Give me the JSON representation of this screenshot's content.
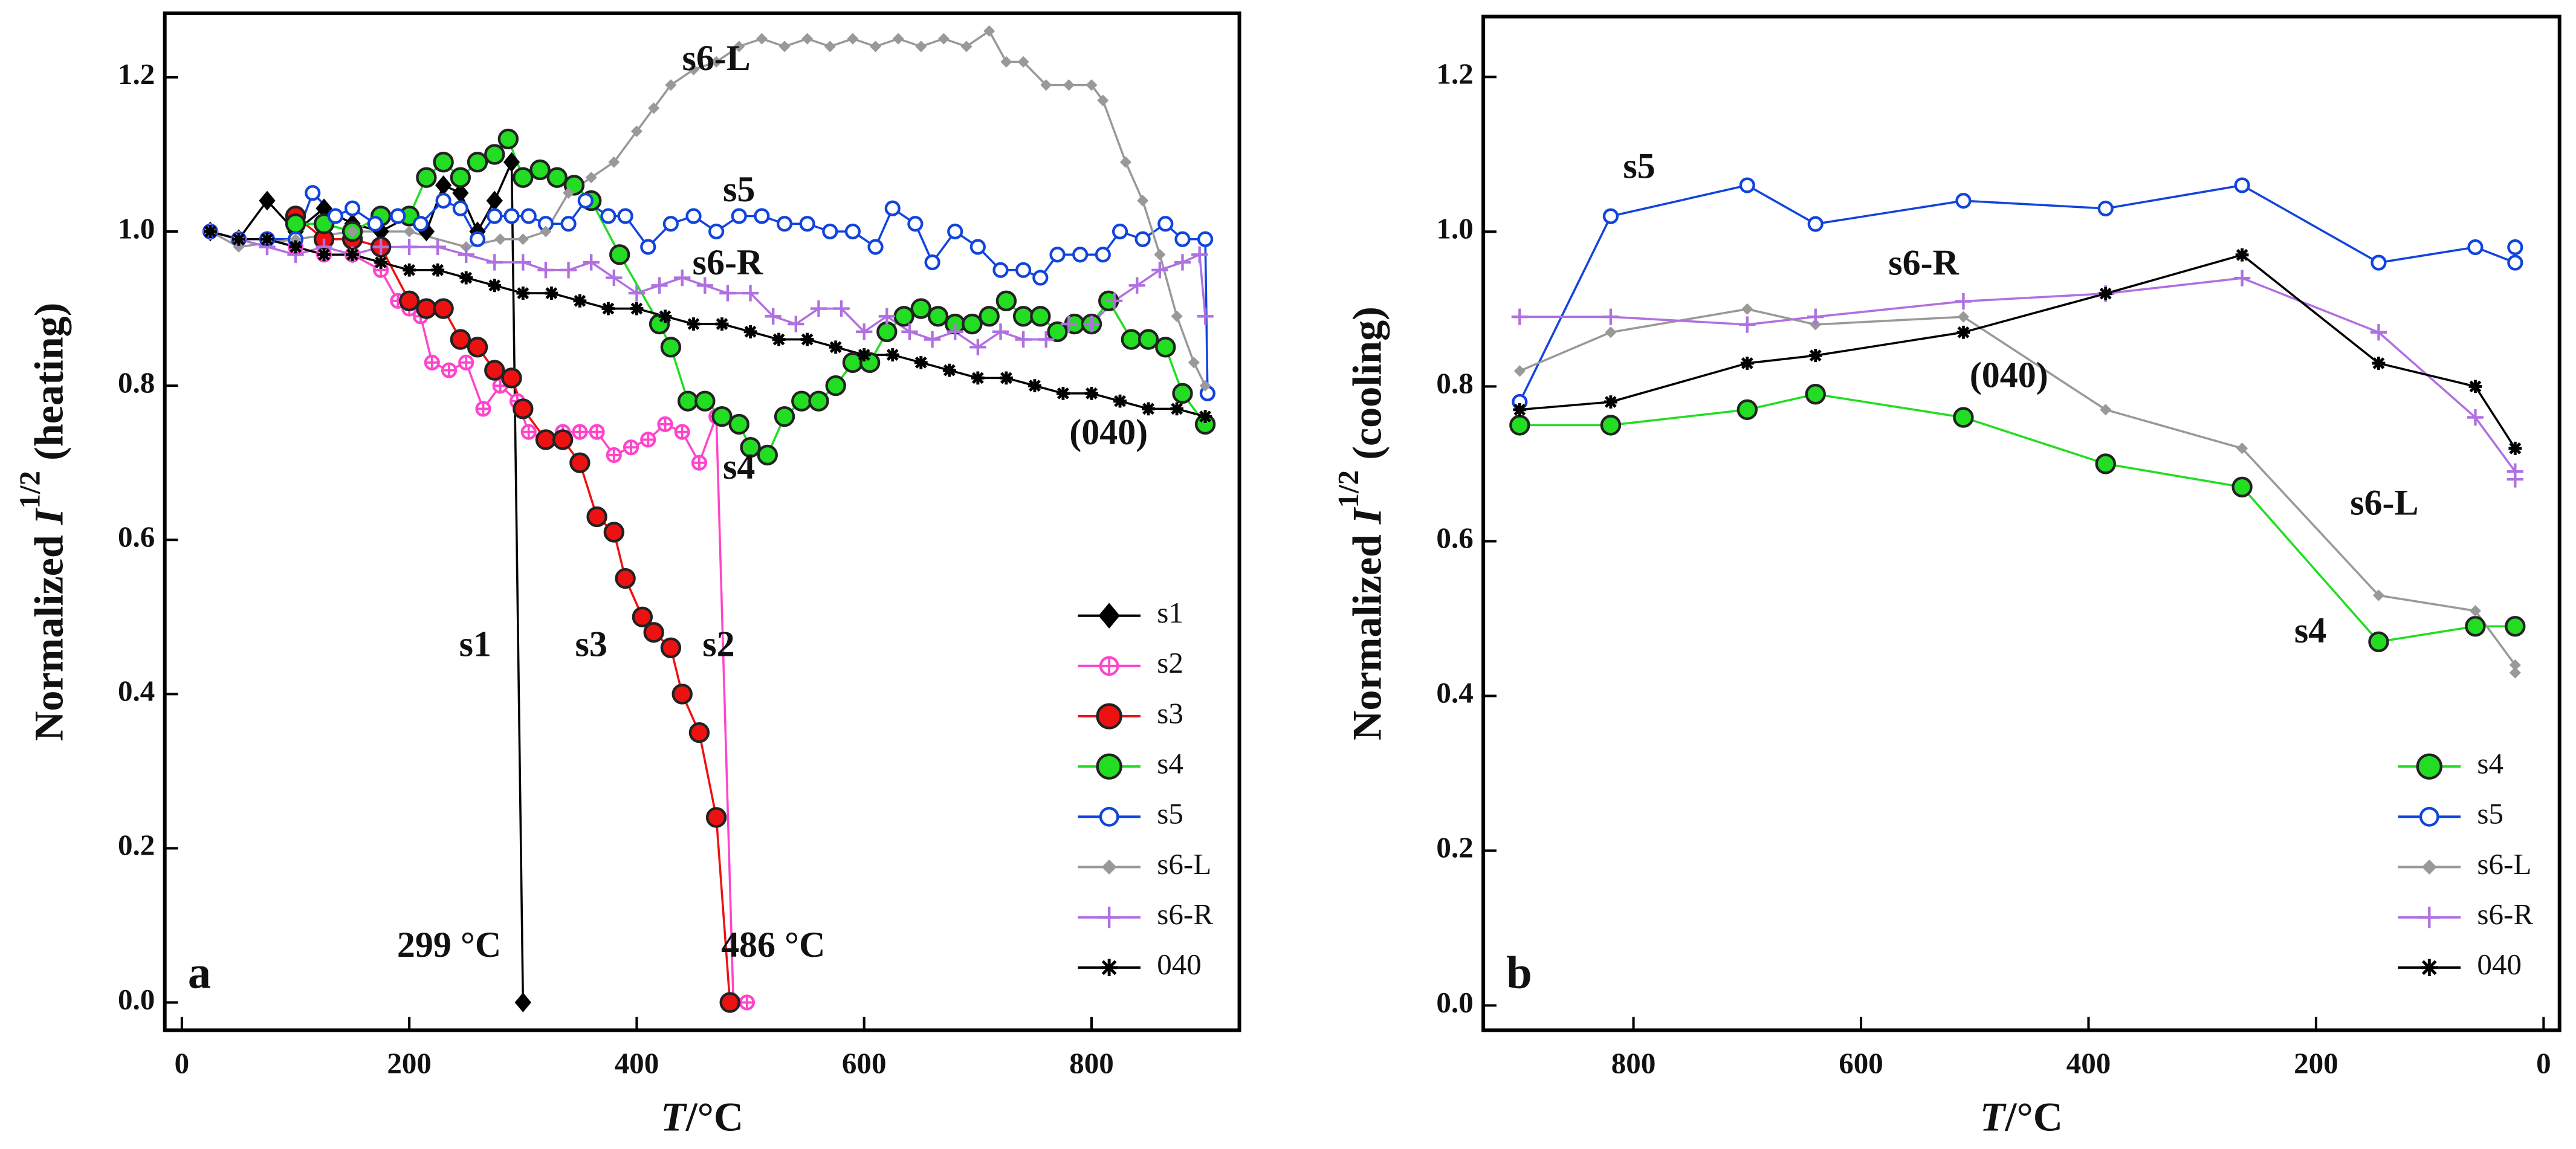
{
  "chart_data": [
    {
      "type": "line",
      "panel": "a",
      "xlabel": {
        "var": "T",
        "post": "/°C"
      },
      "ylabel": {
        "pre": "Normalized ",
        "var": "I",
        "sup": "1/2",
        "post": " (heating)"
      },
      "xlim": [
        -15,
        930
      ],
      "xticks": [
        0,
        200,
        400,
        600,
        800
      ],
      "ylim": [
        -0.036,
        1.283
      ],
      "yticks": [
        {
          "value": 0,
          "label": "0.0"
        },
        0.2,
        0.4,
        0.6,
        0.8,
        {
          "value": 1,
          "label": "1.0"
        },
        1.2
      ],
      "legend": "lower right",
      "annotations": [
        "s6-L",
        "s5",
        "s6-R",
        "s4",
        "(040)",
        "s1",
        "s3",
        "s2",
        "299 °C",
        "486 °C"
      ],
      "series": [
        {
          "name": "s1",
          "color": "#000000",
          "marker": "diamond",
          "x": [
            25,
            50,
            75,
            100,
            125,
            150,
            175,
            200,
            215,
            230,
            245,
            260,
            275,
            290,
            300
          ],
          "values": [
            1.0,
            0.99,
            1.04,
            1.0,
            1.03,
            1.01,
            1.0,
            1.02,
            1.0,
            1.06,
            1.05,
            1.0,
            1.04,
            1.09,
            0.0
          ]
        },
        {
          "name": "s2",
          "color": "#ff44cc",
          "marker": "circle-cross",
          "x": [
            25,
            50,
            75,
            100,
            125,
            150,
            175,
            190,
            200,
            210,
            220,
            235,
            250,
            265,
            280,
            295,
            305,
            320,
            335,
            350,
            365,
            380,
            395,
            410,
            425,
            440,
            455,
            470,
            485,
            497
          ],
          "values": [
            1.0,
            0.99,
            0.99,
            0.98,
            0.97,
            0.97,
            0.95,
            0.91,
            0.9,
            0.89,
            0.83,
            0.82,
            0.83,
            0.77,
            0.8,
            0.78,
            0.74,
            0.73,
            0.74,
            0.74,
            0.74,
            0.71,
            0.72,
            0.73,
            0.75,
            0.74,
            0.7,
            0.76,
            0.0,
            0.0
          ]
        },
        {
          "name": "s3",
          "color": "#ee1111",
          "marker": "circle",
          "x": [
            100,
            125,
            150,
            175,
            200,
            215,
            230,
            245,
            260,
            275,
            290,
            300,
            320,
            335,
            350,
            365,
            380,
            390,
            405,
            415,
            430,
            440,
            455,
            470,
            482
          ],
          "values": [
            1.02,
            0.99,
            0.99,
            0.98,
            0.91,
            0.9,
            0.9,
            0.86,
            0.85,
            0.82,
            0.81,
            0.77,
            0.73,
            0.73,
            0.7,
            0.63,
            0.61,
            0.55,
            0.5,
            0.48,
            0.46,
            0.4,
            0.35,
            0.24,
            0.0
          ]
        },
        {
          "name": "s4",
          "color": "#22dd22",
          "marker": "circle",
          "x": [
            100,
            125,
            150,
            175,
            200,
            215,
            230,
            245,
            260,
            275,
            287,
            300,
            315,
            330,
            345,
            360,
            385,
            420,
            430,
            445,
            460,
            475,
            490,
            500,
            515,
            530,
            545,
            560,
            575,
            590,
            605,
            620,
            635,
            650,
            665,
            680,
            695,
            710,
            725,
            740,
            755,
            770,
            785,
            800,
            815,
            835,
            850,
            865,
            880,
            900
          ],
          "values": [
            1.01,
            1.01,
            1.0,
            1.02,
            1.02,
            1.07,
            1.09,
            1.07,
            1.09,
            1.1,
            1.12,
            1.07,
            1.08,
            1.07,
            1.06,
            1.04,
            0.97,
            0.88,
            0.85,
            0.78,
            0.78,
            0.76,
            0.75,
            0.72,
            0.71,
            0.76,
            0.78,
            0.78,
            0.8,
            0.83,
            0.83,
            0.87,
            0.89,
            0.9,
            0.89,
            0.88,
            0.88,
            0.89,
            0.91,
            0.89,
            0.89,
            0.87,
            0.88,
            0.88,
            0.91,
            0.86,
            0.86,
            0.85,
            0.79,
            0.75
          ]
        },
        {
          "name": "s5",
          "color": "#1144dd",
          "marker": "circle-open",
          "x": [
            25,
            50,
            75,
            100,
            115,
            135,
            150,
            170,
            190,
            210,
            230,
            245,
            260,
            275,
            290,
            305,
            320,
            340,
            355,
            375,
            390,
            410,
            430,
            450,
            470,
            490,
            510,
            530,
            550,
            570,
            590,
            610,
            625,
            645,
            660,
            680,
            700,
            720,
            740,
            755,
            770,
            790,
            810,
            825,
            845,
            865,
            880,
            900,
            902
          ],
          "values": [
            1.0,
            0.99,
            0.99,
            0.99,
            1.05,
            1.02,
            1.03,
            1.01,
            1.02,
            1.01,
            1.04,
            1.03,
            0.99,
            1.02,
            1.02,
            1.02,
            1.01,
            1.01,
            1.04,
            1.02,
            1.02,
            0.98,
            1.01,
            1.02,
            1.0,
            1.02,
            1.02,
            1.01,
            1.01,
            1.0,
            1.0,
            0.98,
            1.03,
            1.01,
            0.96,
            1.0,
            0.98,
            0.95,
            0.95,
            0.94,
            0.97,
            0.97,
            0.97,
            1.0,
            0.99,
            1.01,
            0.99,
            0.99,
            0.79
          ]
        },
        {
          "name": "s6-L",
          "color": "#999999",
          "marker": "diamond-small",
          "x": [
            25,
            50,
            100,
            150,
            200,
            250,
            280,
            300,
            320,
            340,
            360,
            380,
            400,
            415,
            430,
            450,
            470,
            490,
            510,
            530,
            550,
            570,
            590,
            610,
            630,
            650,
            670,
            690,
            710,
            725,
            740,
            760,
            780,
            800,
            810,
            830,
            845,
            860,
            875,
            890,
            900
          ],
          "values": [
            1.0,
            0.98,
            0.99,
            1.0,
            1.0,
            0.98,
            0.99,
            0.99,
            1.0,
            1.05,
            1.07,
            1.09,
            1.13,
            1.16,
            1.19,
            1.21,
            1.22,
            1.24,
            1.25,
            1.24,
            1.25,
            1.24,
            1.25,
            1.24,
            1.25,
            1.24,
            1.25,
            1.24,
            1.26,
            1.22,
            1.22,
            1.19,
            1.19,
            1.19,
            1.17,
            1.09,
            1.04,
            0.97,
            0.89,
            0.83,
            0.8
          ]
        },
        {
          "name": "s6-R",
          "color": "#b070e0",
          "marker": "plus",
          "x": [
            25,
            50,
            75,
            100,
            125,
            150,
            175,
            200,
            225,
            250,
            275,
            300,
            320,
            340,
            360,
            380,
            400,
            420,
            440,
            460,
            480,
            500,
            520,
            540,
            560,
            580,
            600,
            620,
            640,
            660,
            680,
            700,
            720,
            740,
            760,
            780,
            800,
            820,
            840,
            860,
            880,
            895,
            900
          ],
          "values": [
            1.0,
            0.99,
            0.98,
            0.97,
            0.98,
            0.97,
            0.98,
            0.98,
            0.98,
            0.97,
            0.96,
            0.96,
            0.95,
            0.95,
            0.96,
            0.94,
            0.92,
            0.93,
            0.94,
            0.93,
            0.92,
            0.92,
            0.89,
            0.88,
            0.9,
            0.9,
            0.87,
            0.89,
            0.87,
            0.86,
            0.87,
            0.85,
            0.87,
            0.86,
            0.86,
            0.88,
            0.88,
            0.91,
            0.93,
            0.95,
            0.96,
            0.97,
            0.89
          ]
        },
        {
          "name": "040",
          "color": "#000000",
          "marker": "asterisk",
          "x": [
            25,
            50,
            75,
            100,
            125,
            150,
            175,
            200,
            225,
            250,
            275,
            300,
            325,
            350,
            375,
            400,
            425,
            450,
            475,
            500,
            525,
            550,
            575,
            600,
            625,
            650,
            675,
            700,
            725,
            750,
            775,
            800,
            825,
            850,
            875,
            900
          ],
          "values": [
            1.0,
            0.99,
            0.99,
            0.98,
            0.97,
            0.97,
            0.96,
            0.95,
            0.95,
            0.94,
            0.93,
            0.92,
            0.92,
            0.91,
            0.9,
            0.9,
            0.89,
            0.88,
            0.88,
            0.87,
            0.86,
            0.86,
            0.85,
            0.84,
            0.84,
            0.83,
            0.82,
            0.81,
            0.81,
            0.8,
            0.79,
            0.79,
            0.78,
            0.77,
            0.77,
            0.76
          ]
        }
      ]
    },
    {
      "type": "line",
      "panel": "b",
      "xlabel": {
        "var": "T",
        "post": "/°C"
      },
      "ylabel": {
        "pre": "Normalized ",
        "var": "I",
        "sup": "1/2",
        "post": " (cooling)"
      },
      "xlim": [
        932,
        -14
      ],
      "xticks": [
        800,
        600,
        400,
        200,
        0
      ],
      "ylim": [
        -0.032,
        1.278
      ],
      "yticks": [
        {
          "value": 0,
          "label": "0.0"
        },
        0.2,
        0.4,
        0.6,
        0.8,
        {
          "value": 1,
          "label": "1.0"
        },
        1.2
      ],
      "legend": "lower right",
      "annotations": [
        "s5",
        "s6-R",
        "(040)",
        "s6-L",
        "s4"
      ],
      "series": [
        {
          "name": "s4",
          "color": "#22dd22",
          "marker": "circle",
          "x": [
            900,
            820,
            700,
            640,
            510,
            385,
            265,
            145,
            60,
            25
          ],
          "values": [
            0.75,
            0.75,
            0.77,
            0.79,
            0.76,
            0.7,
            0.67,
            0.47,
            0.49,
            0.49
          ]
        },
        {
          "name": "s5",
          "color": "#1144dd",
          "marker": "circle-open",
          "x": [
            900,
            820,
            700,
            640,
            510,
            385,
            265,
            145,
            60,
            25,
            25
          ],
          "values": [
            0.78,
            1.02,
            1.06,
            1.01,
            1.04,
            1.03,
            1.06,
            0.96,
            0.98,
            0.96,
            0.98
          ]
        },
        {
          "name": "s6-L",
          "color": "#999999",
          "marker": "diamond-small",
          "x": [
            900,
            820,
            700,
            640,
            510,
            385,
            265,
            145,
            60,
            25,
            25
          ],
          "values": [
            0.82,
            0.87,
            0.9,
            0.88,
            0.89,
            0.77,
            0.72,
            0.53,
            0.51,
            0.44,
            0.43
          ]
        },
        {
          "name": "s6-R",
          "color": "#b070e0",
          "marker": "plus",
          "x": [
            900,
            820,
            700,
            640,
            510,
            385,
            265,
            145,
            60,
            25,
            25
          ],
          "values": [
            0.89,
            0.89,
            0.88,
            0.89,
            0.91,
            0.92,
            0.94,
            0.87,
            0.76,
            0.69,
            0.68
          ]
        },
        {
          "name": "040",
          "color": "#000000",
          "marker": "asterisk",
          "x": [
            900,
            820,
            700,
            640,
            510,
            385,
            265,
            145,
            60,
            25
          ],
          "values": [
            0.77,
            0.78,
            0.83,
            0.84,
            0.87,
            0.92,
            0.97,
            0.83,
            0.8,
            0.72
          ]
        }
      ]
    }
  ]
}
